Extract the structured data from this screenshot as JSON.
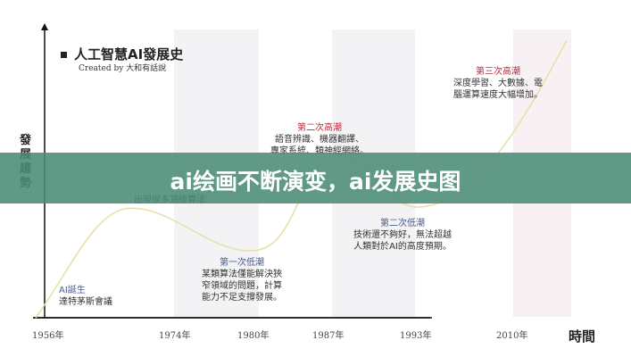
{
  "diagram": {
    "title": "人工智慧AI發展史",
    "credit": "Created by 大和有話說",
    "y_axis_label": "發展趨勢",
    "x_axis_label": "時間",
    "ticks": [
      "1956年",
      "1974年",
      "1980年",
      "1987年",
      "1993年",
      "2010年"
    ],
    "annotations": {
      "birth": {
        "heading": "AI誕生",
        "text": "達特茅斯會議"
      },
      "first_high": {
        "text": "出現很多頂級算法"
      },
      "first_low": {
        "heading": "第一次低潮",
        "line1": "某類算法僅能解決狹",
        "line2": "窄領域的問題，計算",
        "line3": "能力不足支撐發展。"
      },
      "second_high": {
        "heading": "第二次高潮",
        "line1": "語音辨識、機器翻譯、",
        "line2": "專家系統、類神經網絡。"
      },
      "second_low": {
        "heading": "第二次低潮",
        "line1": "技術還不夠好，無法超越",
        "line2": "人類對於AI的高度預期。"
      },
      "third_high": {
        "heading": "第三次高潮",
        "line1": "深度學習、大數據、電",
        "line2": "腦運算速度大幅增加。"
      }
    },
    "colors": {
      "high_heading": "#c0283c",
      "low_heading": "#4a5a8c",
      "curve": "#e8e0a8",
      "banner": "#4a8c76"
    }
  },
  "banner": {
    "text": "ai绘画不断演变，ai发展史图"
  }
}
